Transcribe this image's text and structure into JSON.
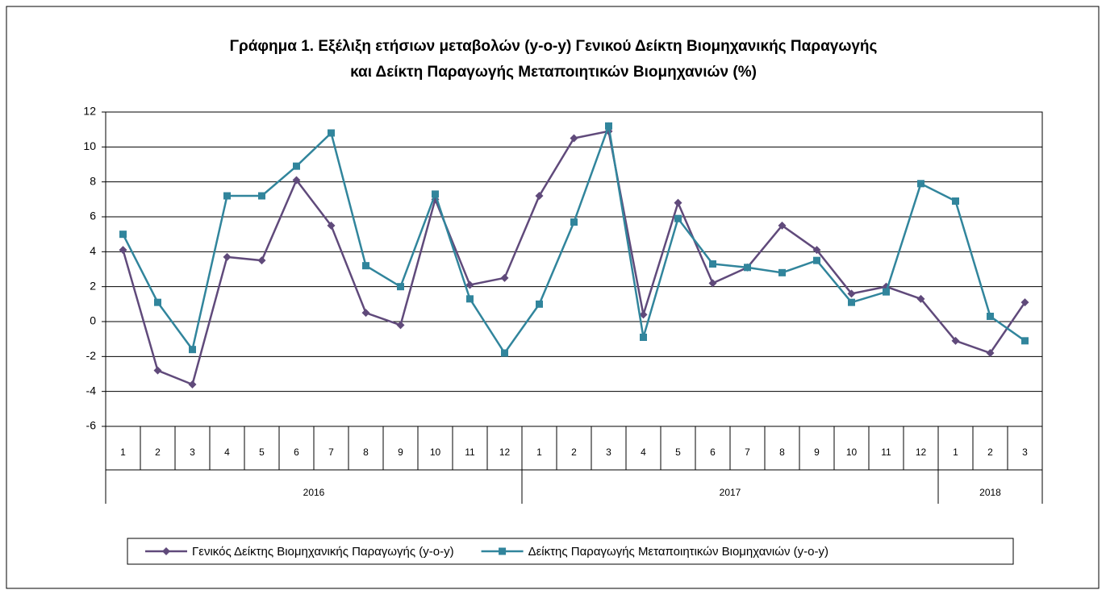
{
  "chart_data": {
    "type": "line",
    "title": [
      "Γράφημα 1. Εξέλιξη ετήσιων μεταβολών (y-o-y) Γενικού Δείκτη Βιομηχανικής Παραγωγής",
      "και Δείκτη Παραγωγής Μεταποιητικών Βιομηχανιών (%)"
    ],
    "categories": [
      "1",
      "2",
      "3",
      "4",
      "5",
      "6",
      "7",
      "8",
      "9",
      "10",
      "11",
      "12",
      "1",
      "2",
      "3",
      "4",
      "5",
      "6",
      "7",
      "8",
      "9",
      "10",
      "11",
      "12",
      "1",
      "2",
      "3"
    ],
    "years": [
      "2016",
      "2017",
      "2018"
    ],
    "series": [
      {
        "name": "Γενικός Δείκτης Βιομηχανικής Παραγωγής (y-o-y)",
        "color": "#604a7b",
        "marker": "diamond",
        "values": [
          4.1,
          -2.8,
          -3.6,
          3.7,
          3.5,
          8.1,
          5.5,
          0.5,
          -0.2,
          7.0,
          2.1,
          2.5,
          7.2,
          10.5,
          10.9,
          0.4,
          6.8,
          2.2,
          3.1,
          5.5,
          4.1,
          1.6,
          2.0,
          1.3,
          -1.1,
          -1.8,
          1.1
        ]
      },
      {
        "name": "Δείκτης Παραγωγής Μεταποιητικών Βιομηχανιών (y-o-y)",
        "color": "#31859c",
        "marker": "square",
        "values": [
          5.0,
          1.1,
          -1.6,
          7.2,
          7.2,
          8.9,
          10.8,
          3.2,
          2.0,
          7.3,
          1.3,
          -1.8,
          1.0,
          5.7,
          11.2,
          -0.9,
          5.9,
          3.3,
          3.1,
          2.8,
          3.5,
          1.1,
          1.7,
          7.9,
          6.9,
          0.3,
          -1.1
        ]
      }
    ],
    "ylim": [
      -6,
      12
    ],
    "yticks": [
      -6,
      -4,
      -2,
      0,
      2,
      4,
      6,
      8,
      10,
      12
    ],
    "grid": true
  }
}
